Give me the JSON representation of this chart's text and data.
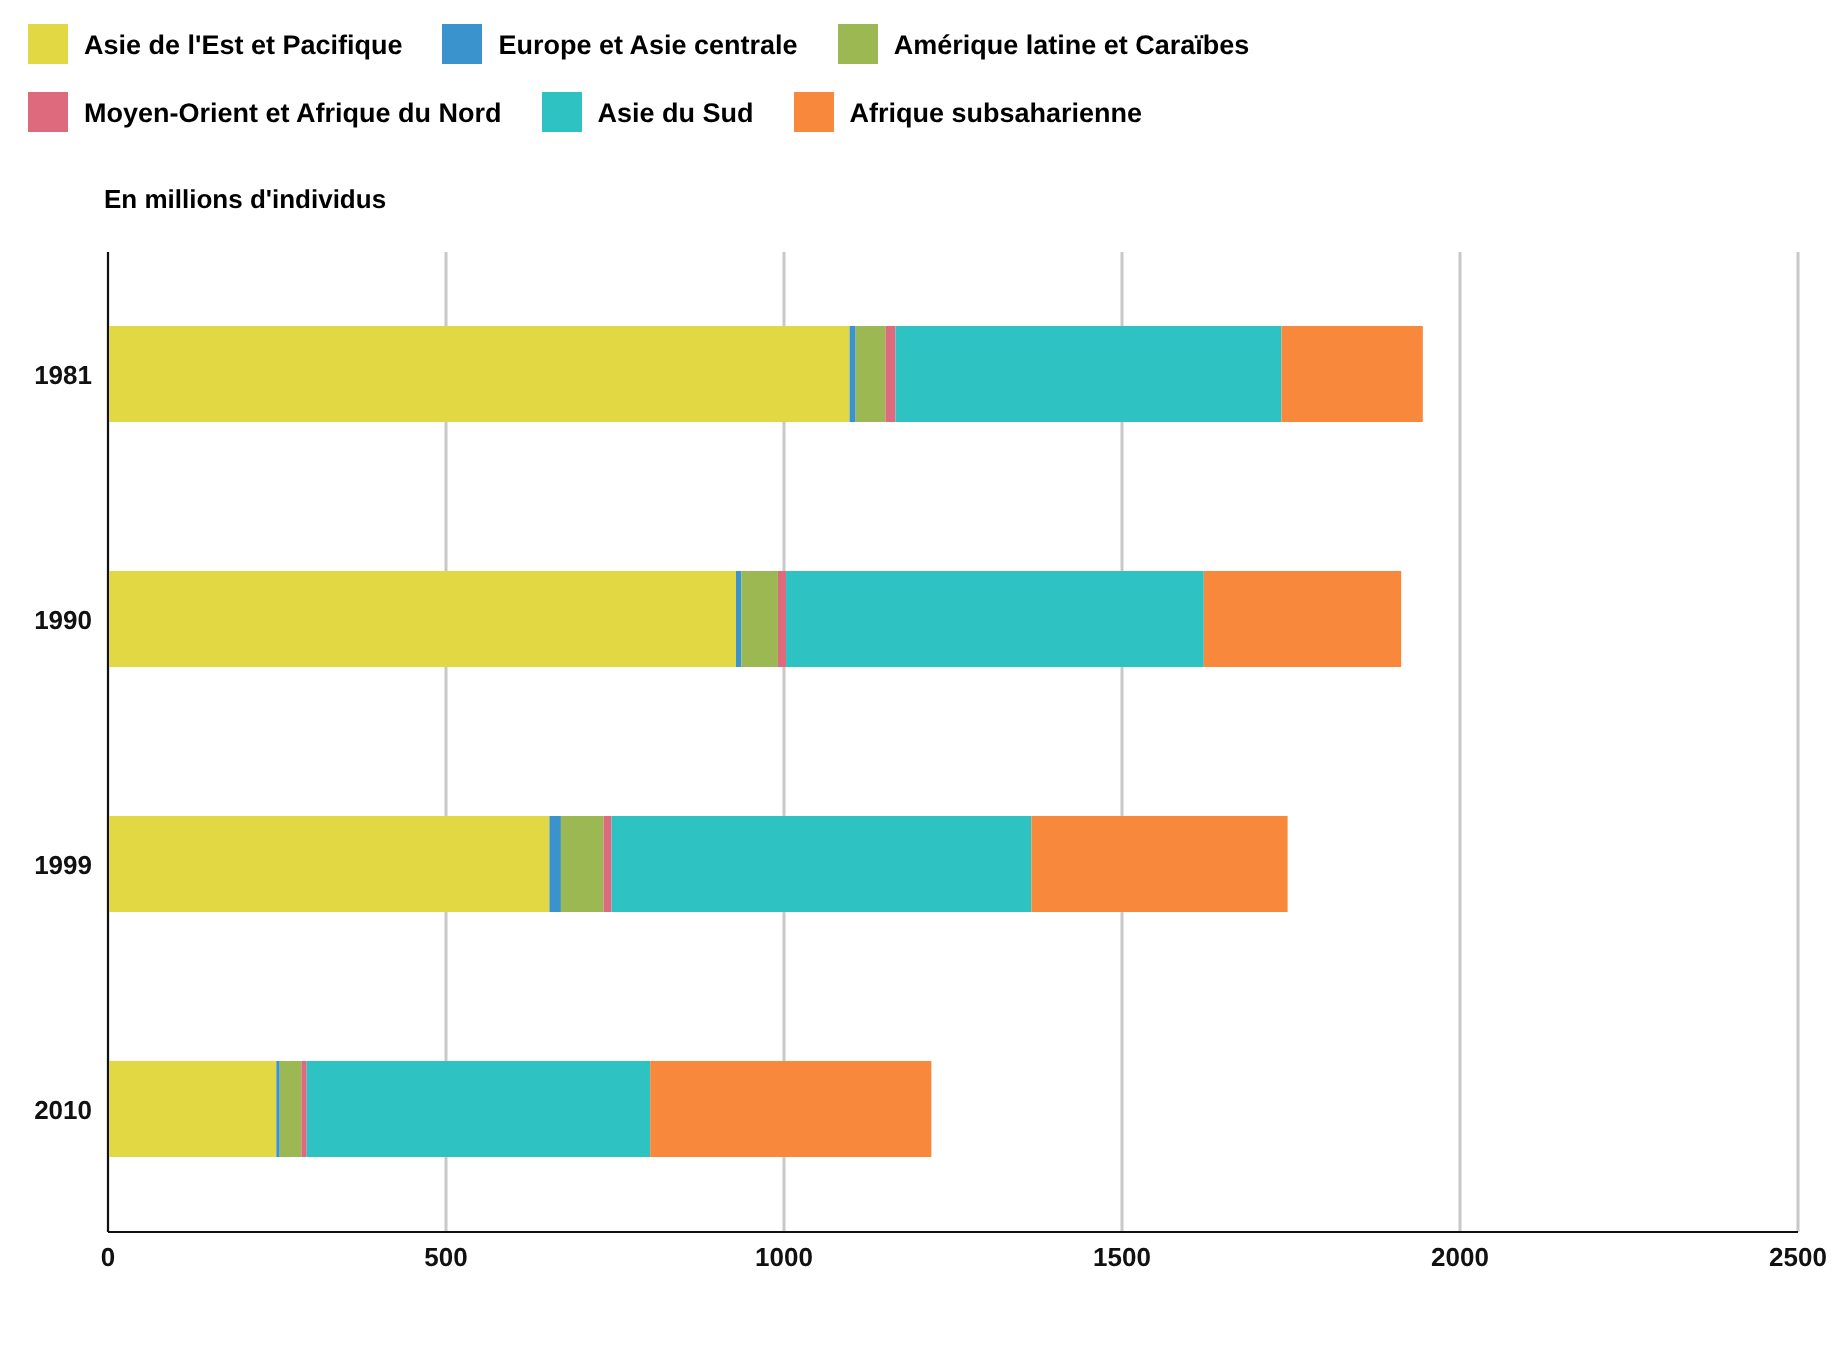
{
  "chart_data": {
    "type": "bar",
    "orientation": "horizontal",
    "stacked": true,
    "xlabel": "En millions d'individus",
    "categories": [
      "1981",
      "1990",
      "1999",
      "2010"
    ],
    "series": [
      {
        "name": "Asie de l'Est et Pacifique",
        "color": "#e2d843",
        "values": [
          1097,
          929,
          653,
          249
        ]
      },
      {
        "name": "Europe et Asie centrale",
        "color": "#3a93cc",
        "values": [
          9,
          8,
          17,
          5
        ]
      },
      {
        "name": "Amérique latine et Caraïbes",
        "color": "#9bb853",
        "values": [
          44,
          54,
          63,
          32
        ]
      },
      {
        "name": "Moyen-Orient et Afrique du Nord",
        "color": "#de6a7d",
        "values": [
          15,
          12,
          12,
          8
        ]
      },
      {
        "name": "Asie du Sud",
        "color": "#2ec3c2",
        "values": [
          571,
          618,
          621,
          508
        ]
      },
      {
        "name": "Afrique subsaharienne",
        "color": "#f8883c",
        "values": [
          209,
          292,
          379,
          416
        ]
      }
    ],
    "xlim": [
      0,
      2500
    ],
    "xticks": [
      0,
      500,
      1000,
      1500,
      2000,
      2500
    ],
    "grid": "x",
    "legend": "top"
  }
}
